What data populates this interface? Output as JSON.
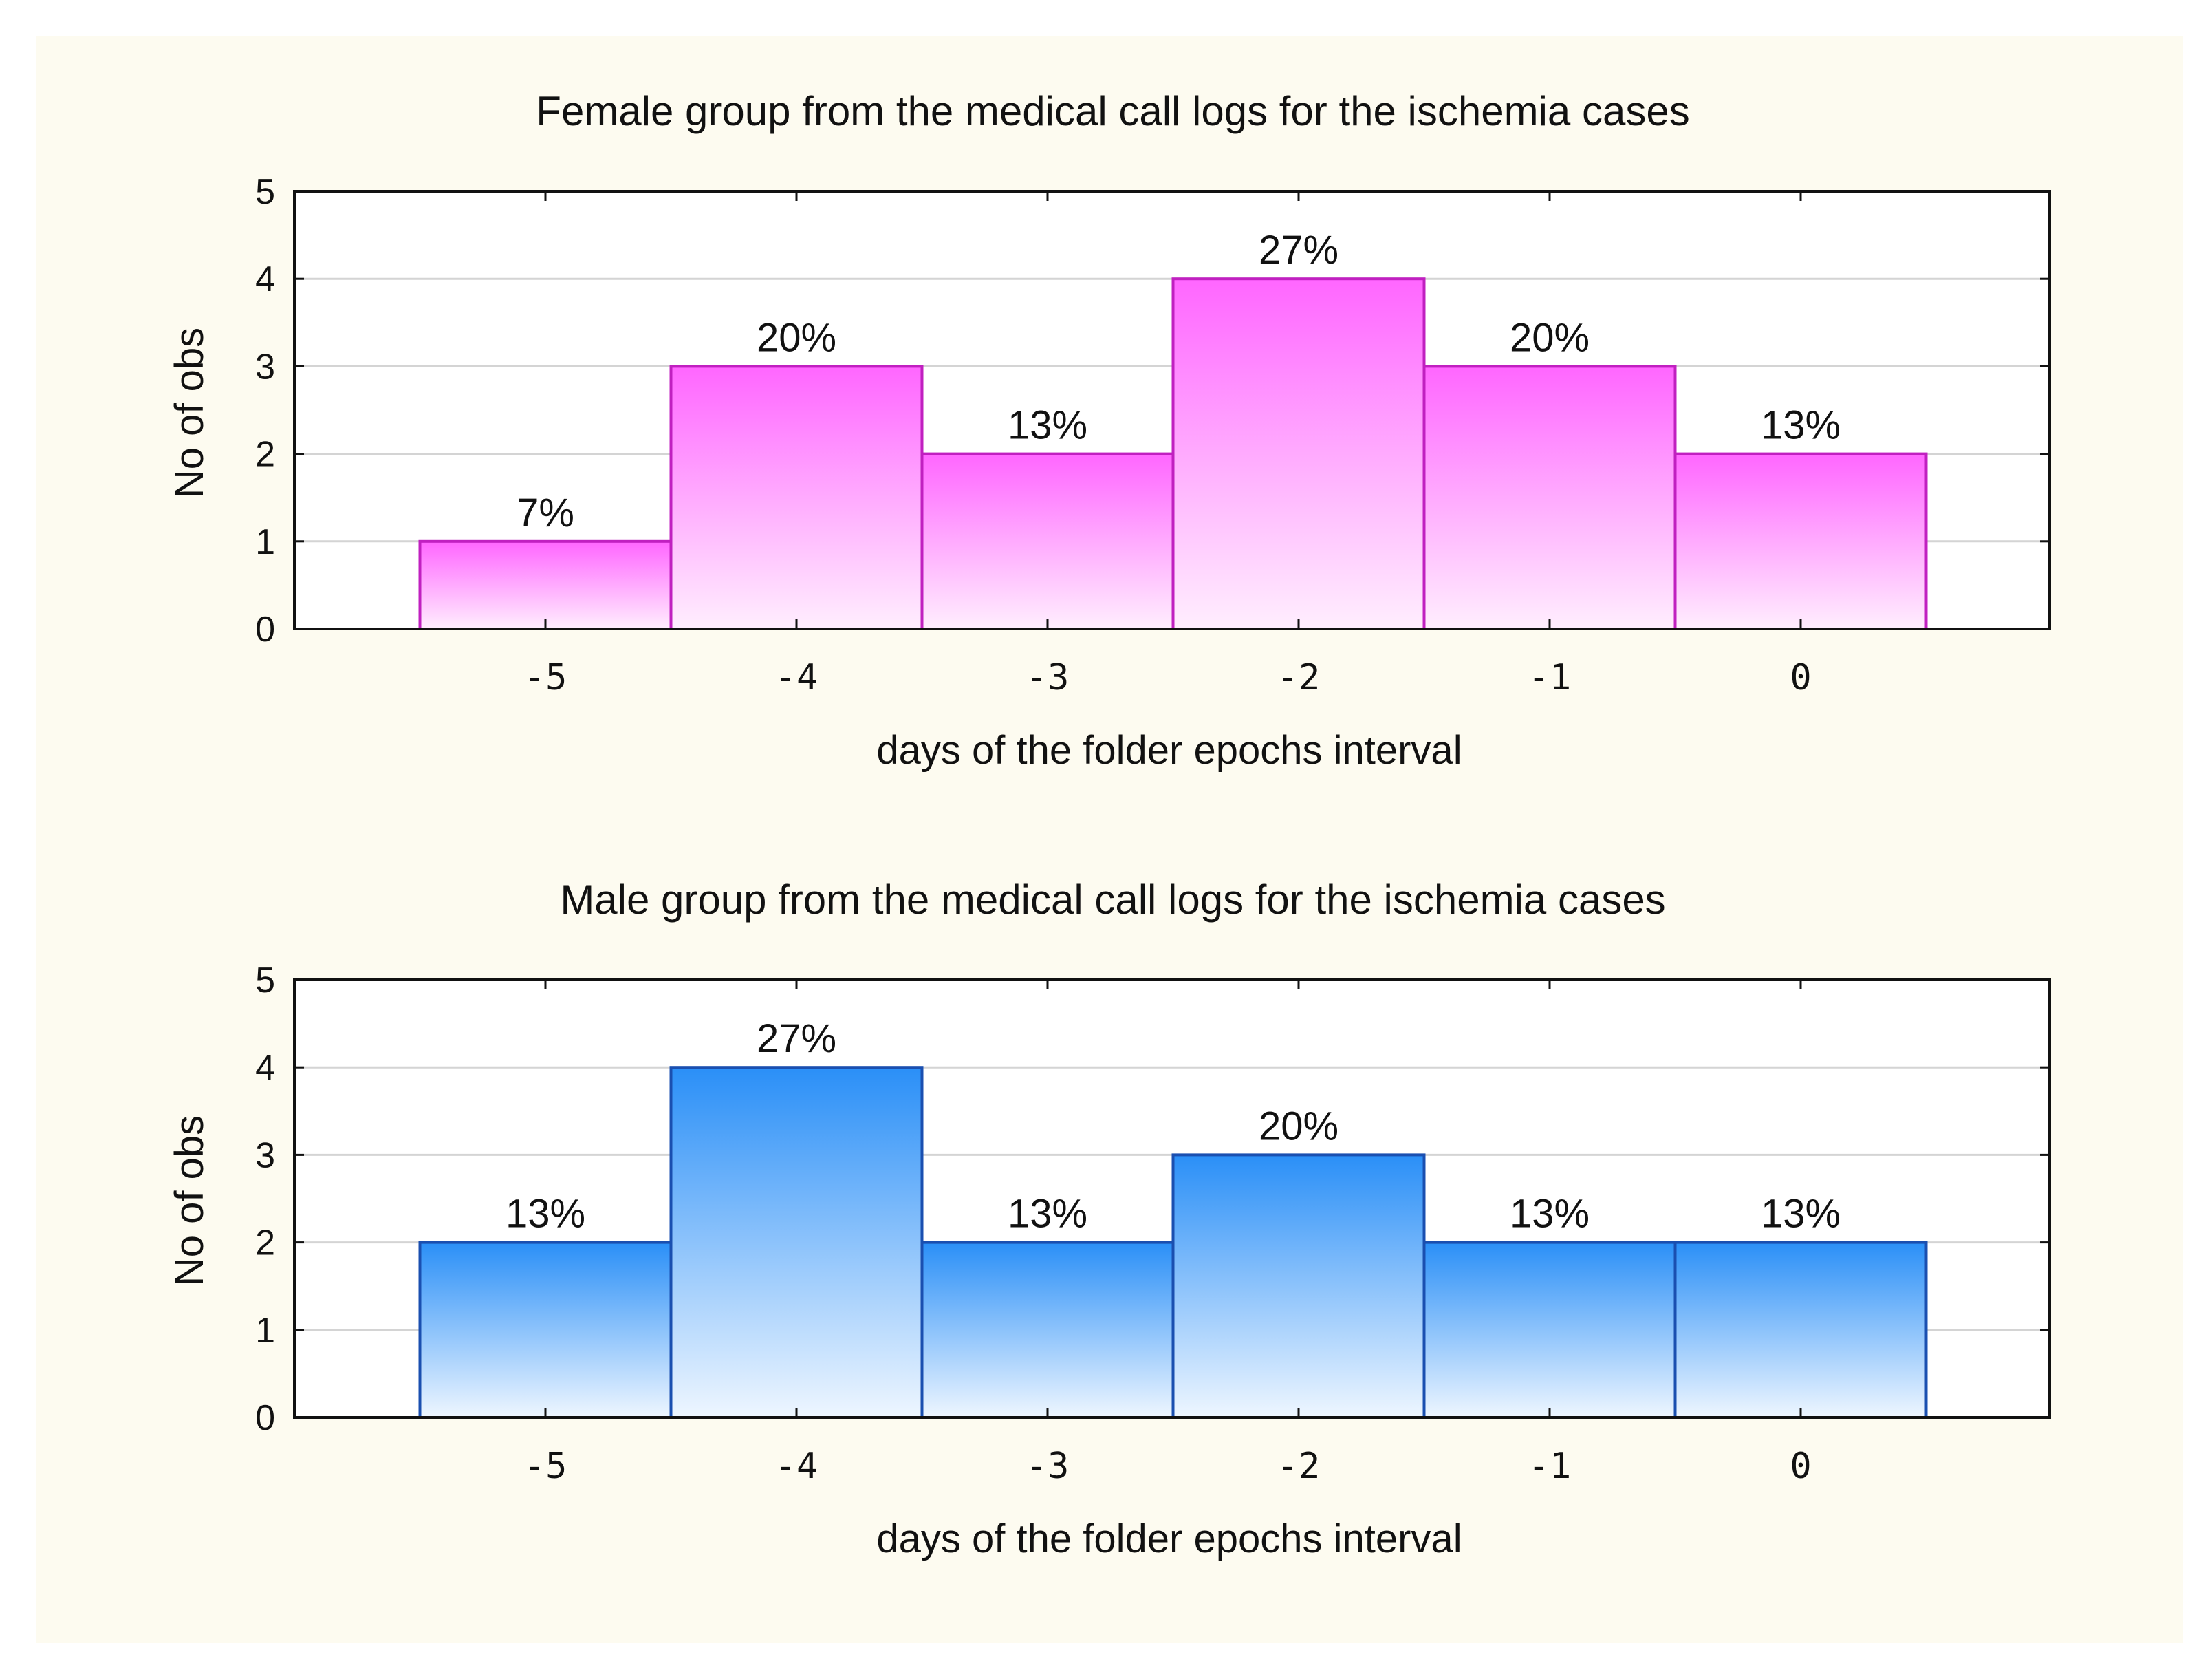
{
  "chart_data": [
    {
      "type": "bar",
      "title": "Female group from the medical call logs for the ischemia cases",
      "xlabel": "days of the folder epochs interval",
      "ylabel": "No of obs",
      "categories": [
        "-5",
        "-4",
        "-3",
        "-2",
        "-1",
        "0"
      ],
      "values": [
        1,
        3,
        2,
        4,
        3,
        2
      ],
      "data_labels": [
        "7%",
        "20%",
        "13%",
        "27%",
        "20%",
        "13%"
      ],
      "yticks": [
        "0",
        "1",
        "2",
        "3",
        "4",
        "5"
      ],
      "ylim": [
        0,
        5
      ],
      "grid": true,
      "colors": {
        "top": "#ff66ff",
        "bottom": "#ffeefe",
        "stroke": "#c020c0"
      }
    },
    {
      "type": "bar",
      "title": "Male group from the medical call logs for the ischemia cases",
      "xlabel": "days of the folder epochs interval",
      "ylabel": "No of obs",
      "categories": [
        "-5",
        "-4",
        "-3",
        "-2",
        "-1",
        "0"
      ],
      "values": [
        2,
        4,
        2,
        3,
        2,
        2
      ],
      "data_labels": [
        "13%",
        "27%",
        "13%",
        "20%",
        "13%",
        "13%"
      ],
      "yticks": [
        "0",
        "1",
        "2",
        "3",
        "4",
        "5"
      ],
      "ylim": [
        0,
        5
      ],
      "grid": true,
      "colors": {
        "top": "#2a8ff7",
        "bottom": "#eef6ff",
        "stroke": "#1a4fb0"
      }
    }
  ]
}
